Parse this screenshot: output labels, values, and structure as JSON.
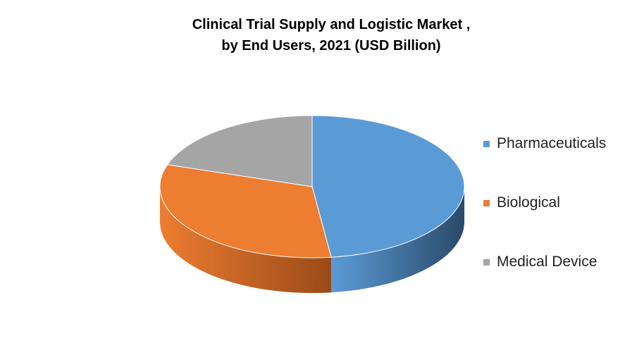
{
  "chart_data": {
    "type": "pie",
    "title_lines": [
      "Clinical Trial Supply and Logistic Market ,",
      "by End Users, 2021 (USD Billion)"
    ],
    "categories": [
      "Pharmaceuticals",
      "Biological",
      "Medical Device"
    ],
    "values": [
      48,
      32,
      20
    ],
    "colors": [
      "#5B9BD5",
      "#ED7D31",
      "#A5A5A5"
    ],
    "side_colors": [
      "#2A4A6A",
      "#9A4A18",
      "#6E6E6E"
    ],
    "legend_position": "right",
    "style": "3d"
  }
}
